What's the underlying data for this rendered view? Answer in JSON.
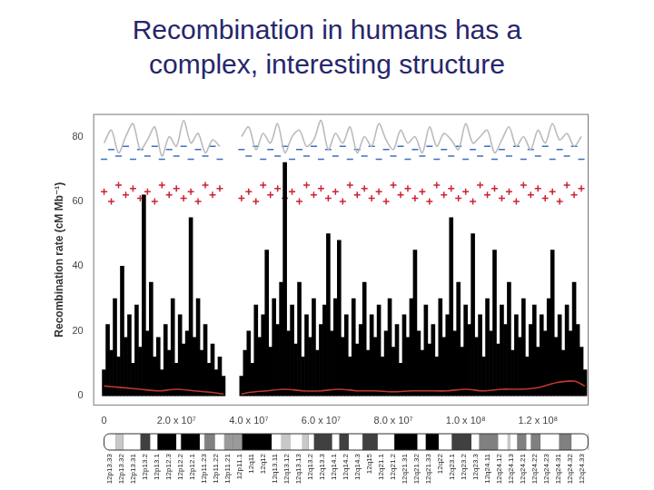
{
  "chart_data": {
    "type": "bar",
    "title": "Recombination in humans has a complex, interesting structure",
    "y_label": "Recombination rate (cM Mb⁻¹)",
    "xlim": [
      -3000000,
      134000000
    ],
    "xticks": [
      0,
      {
        "value": 20000000,
        "label": "2.0 x 10⁷"
      },
      {
        "value": 40000000,
        "label": "4.0 x 10⁷"
      },
      {
        "value": 60000000,
        "label": "6.0 x 10⁷"
      },
      {
        "value": 80000000,
        "label": "8.0 x 10⁷"
      },
      {
        "value": 100000000,
        "label": "1.0 x 10⁸"
      },
      {
        "value": 120000000,
        "label": "1.2 x 10⁸"
      }
    ],
    "ylim": [
      -3,
      87
    ],
    "yticks": [
      0,
      20,
      40,
      60,
      80
    ],
    "grid": false,
    "series": [
      {
        "type": "line",
        "color": "#c0392b",
        "x": [
          0,
          5000000,
          10000000,
          15000000,
          20000000,
          25000000,
          30000000,
          33000000,
          35000000,
          38000000,
          40000000,
          45000000,
          50000000,
          55000000,
          60000000,
          65000000,
          70000000,
          75000000,
          80000000,
          85000000,
          90000000,
          95000000,
          100000000,
          105000000,
          110000000,
          115000000,
          120000000,
          125000000,
          130000000,
          133000000
        ],
        "values": [
          3,
          2.5,
          2,
          1.5,
          2,
          1.5,
          1,
          0.5,
          null,
          0.5,
          1,
          1.5,
          2,
          1.5,
          1.5,
          2,
          1.5,
          1.5,
          1.2,
          1.5,
          1.5,
          1.5,
          2,
          1.5,
          2,
          2,
          2.5,
          4,
          4.5,
          3
        ]
      },
      {
        "type": "bar",
        "color": "#000000",
        "x": [
          0,
          1000000,
          2000000,
          3000000,
          4000000,
          5000000,
          6000000,
          7000000,
          8000000,
          9000000,
          10000000,
          11000000,
          12000000,
          13000000,
          14000000,
          15000000,
          16000000,
          17000000,
          18000000,
          19000000,
          20000000,
          21000000,
          22000000,
          23000000,
          24000000,
          25000000,
          26000000,
          27000000,
          28000000,
          29000000,
          30000000,
          31000000,
          32000000,
          33000000,
          34000000,
          35000000,
          36000000,
          37000000,
          38000000,
          39000000,
          40000000,
          41000000,
          42000000,
          43000000,
          44000000,
          45000000,
          46000000,
          47000000,
          48000000,
          49000000,
          50000000,
          51000000,
          52000000,
          53000000,
          54000000,
          55000000,
          56000000,
          57000000,
          58000000,
          59000000,
          60000000,
          61000000,
          62000000,
          63000000,
          64000000,
          65000000,
          66000000,
          67000000,
          68000000,
          69000000,
          70000000,
          71000000,
          72000000,
          73000000,
          74000000,
          75000000,
          76000000,
          77000000,
          78000000,
          79000000,
          80000000,
          81000000,
          82000000,
          83000000,
          84000000,
          85000000,
          86000000,
          87000000,
          88000000,
          89000000,
          90000000,
          91000000,
          92000000,
          93000000,
          94000000,
          95000000,
          96000000,
          97000000,
          98000000,
          99000000,
          100000000,
          101000000,
          102000000,
          103000000,
          104000000,
          105000000,
          106000000,
          107000000,
          108000000,
          109000000,
          110000000,
          111000000,
          112000000,
          113000000,
          114000000,
          115000000,
          116000000,
          117000000,
          118000000,
          119000000,
          120000000,
          121000000,
          122000000,
          123000000,
          124000000,
          125000000,
          126000000,
          127000000,
          128000000,
          129000000,
          130000000,
          131000000,
          132000000,
          133000000
        ],
        "values": [
          8,
          22,
          14,
          30,
          12,
          40,
          18,
          25,
          10,
          28,
          15,
          62,
          20,
          35,
          12,
          18,
          8,
          22,
          14,
          30,
          10,
          25,
          16,
          20,
          55,
          18,
          30,
          14,
          22,
          10,
          16,
          8,
          12,
          6,
          null,
          null,
          null,
          null,
          6,
          14,
          20,
          10,
          28,
          18,
          25,
          45,
          15,
          30,
          22,
          35,
          72,
          20,
          28,
          16,
          35,
          12,
          25,
          18,
          30,
          14,
          22,
          28,
          50,
          20,
          30,
          48,
          18,
          25,
          12,
          30,
          16,
          22,
          35,
          14,
          25,
          18,
          28,
          12,
          20,
          30,
          15,
          22,
          10,
          25,
          18,
          30,
          45,
          20,
          14,
          28,
          16,
          22,
          12,
          30,
          18,
          25,
          55,
          20,
          35,
          15,
          28,
          22,
          50,
          18,
          25,
          12,
          30,
          20,
          45,
          16,
          28,
          22,
          35,
          14,
          25,
          18,
          30,
          12,
          22,
          28,
          15,
          25,
          20,
          30,
          45,
          18,
          25,
          14,
          28,
          20,
          35,
          22,
          15,
          8
        ]
      },
      {
        "type": "line",
        "color": "#bbbbbb",
        "x": [
          0,
          2000000,
          4000000,
          6000000,
          8000000,
          10000000,
          12000000,
          14000000,
          16000000,
          18000000,
          20000000,
          22000000,
          24000000,
          26000000,
          28000000,
          30000000,
          32000000,
          34000000,
          36000000,
          38000000,
          40000000,
          42000000,
          44000000,
          46000000,
          48000000,
          50000000,
          52000000,
          54000000,
          56000000,
          58000000,
          60000000,
          62000000,
          64000000,
          66000000,
          68000000,
          70000000,
          72000000,
          74000000,
          76000000,
          78000000,
          80000000,
          82000000,
          84000000,
          86000000,
          88000000,
          90000000,
          92000000,
          94000000,
          96000000,
          98000000,
          100000000,
          102000000,
          104000000,
          106000000,
          108000000,
          110000000,
          112000000,
          114000000,
          116000000,
          118000000,
          120000000,
          122000000,
          124000000,
          126000000,
          128000000,
          130000000,
          132000000
        ],
        "values": [
          78,
          82,
          75,
          80,
          84,
          76,
          79,
          83,
          74,
          80,
          77,
          85,
          78,
          81,
          75,
          79,
          77,
          null,
          null,
          80,
          83,
          76,
          81,
          78,
          84,
          75,
          80,
          82,
          77,
          79,
          85,
          76,
          81,
          78,
          83,
          75,
          80,
          77,
          84,
          79,
          76,
          82,
          78,
          80,
          75,
          83,
          77,
          81,
          79,
          76,
          84,
          78,
          80,
          82,
          75,
          79,
          83,
          77,
          80,
          76,
          82,
          78,
          84,
          79,
          81,
          77,
          80
        ]
      },
      {
        "type": "scatter",
        "color": "#3a6fc4",
        "marker": "line",
        "x": [
          0,
          2000000,
          4000000,
          6000000,
          8000000,
          10000000,
          12000000,
          14000000,
          16000000,
          18000000,
          20000000,
          22000000,
          24000000,
          26000000,
          28000000,
          30000000,
          32000000,
          34000000,
          36000000,
          38000000,
          40000000,
          42000000,
          44000000,
          46000000,
          48000000,
          50000000,
          52000000,
          54000000,
          56000000,
          58000000,
          60000000,
          62000000,
          64000000,
          66000000,
          68000000,
          70000000,
          72000000,
          74000000,
          76000000,
          78000000,
          80000000,
          82000000,
          84000000,
          86000000,
          88000000,
          90000000,
          92000000,
          94000000,
          96000000,
          98000000,
          100000000,
          102000000,
          104000000,
          106000000,
          108000000,
          110000000,
          112000000,
          114000000,
          116000000,
          118000000,
          120000000,
          122000000,
          124000000,
          126000000,
          128000000,
          130000000,
          132000000
        ],
        "values": [
          73,
          76,
          74,
          77,
          73,
          76,
          74,
          77,
          73,
          76,
          74,
          77,
          73,
          76,
          74,
          77,
          73,
          null,
          null,
          76,
          74,
          77,
          73,
          76,
          74,
          77,
          73,
          76,
          74,
          77,
          73,
          76,
          74,
          77,
          73,
          76,
          74,
          77,
          73,
          76,
          74,
          77,
          73,
          76,
          74,
          77,
          73,
          76,
          74,
          77,
          73,
          76,
          74,
          77,
          73,
          76,
          74,
          77,
          73,
          76,
          74,
          77,
          73,
          76,
          74,
          77,
          73
        ]
      },
      {
        "type": "scatter",
        "color": "#cc2233",
        "marker": "cross",
        "x": [
          0,
          2000000,
          4000000,
          6000000,
          8000000,
          10000000,
          12000000,
          14000000,
          16000000,
          18000000,
          20000000,
          22000000,
          24000000,
          26000000,
          28000000,
          30000000,
          32000000,
          34000000,
          36000000,
          38000000,
          40000000,
          42000000,
          44000000,
          46000000,
          48000000,
          50000000,
          52000000,
          54000000,
          56000000,
          58000000,
          60000000,
          62000000,
          64000000,
          66000000,
          68000000,
          70000000,
          72000000,
          74000000,
          76000000,
          78000000,
          80000000,
          82000000,
          84000000,
          86000000,
          88000000,
          90000000,
          92000000,
          94000000,
          96000000,
          98000000,
          100000000,
          102000000,
          104000000,
          106000000,
          108000000,
          110000000,
          112000000,
          114000000,
          116000000,
          118000000,
          120000000,
          122000000,
          124000000,
          126000000,
          128000000,
          130000000,
          132000000
        ],
        "values": [
          63,
          60,
          65,
          62,
          64,
          61,
          63,
          60,
          65,
          62,
          64,
          61,
          63,
          60,
          65,
          62,
          64,
          null,
          null,
          61,
          63,
          60,
          65,
          62,
          64,
          61,
          63,
          60,
          65,
          62,
          64,
          61,
          63,
          60,
          65,
          62,
          64,
          61,
          63,
          60,
          65,
          62,
          64,
          61,
          63,
          60,
          65,
          62,
          64,
          61,
          63,
          60,
          65,
          62,
          64,
          61,
          63,
          60,
          65,
          62,
          64,
          61,
          63,
          60,
          65,
          62,
          64
        ]
      }
    ],
    "ideogram": {
      "labels": [
        "12p13.33",
        "12p13.32",
        "12p13.31",
        "12p13.2",
        "12p13.1",
        "12p12.3",
        "12p12.2",
        "12p12.1",
        "12p11.23",
        "12p11.22",
        "12p11.21",
        "12p11.1",
        "12q11",
        "12q12",
        "12q13.11",
        "12q13.12",
        "12q13.13",
        "12q13.2",
        "12q13.3",
        "12q14.1",
        "12q14.2",
        "12q14.3",
        "12q15",
        "12q21.1",
        "12q21.2",
        "12q21.31",
        "12q21.32",
        "12q21.33",
        "12q22",
        "12q23.1",
        "12q23.2",
        "12q23.3",
        "12q24.11",
        "12q24.12",
        "12q24.13",
        "12q24.21",
        "12q24.22",
        "12q24.23",
        "12q24.31",
        "12q24.32",
        "12q24.33"
      ],
      "start": [
        0,
        3300000,
        5400000,
        10100000,
        12800000,
        14800000,
        20000000,
        21300000,
        26500000,
        27800000,
        30700000,
        33300000,
        35800000,
        38200000,
        46400000,
        49100000,
        51500000,
        54900000,
        56600000,
        58100000,
        63100000,
        65100000,
        67700000,
        71500000,
        75700000,
        80300000,
        86700000,
        89000000,
        92600000,
        96200000,
        101600000,
        103800000,
        109000000,
        111700000,
        112300000,
        114300000,
        116800000,
        118100000,
        120700000,
        125900000,
        129300000
      ],
      "end": [
        3300000,
        5400000,
        10100000,
        12800000,
        14800000,
        20000000,
        21300000,
        26500000,
        27800000,
        30700000,
        33300000,
        35800000,
        38200000,
        46400000,
        49100000,
        51500000,
        54900000,
        56600000,
        58100000,
        63100000,
        65100000,
        67700000,
        71500000,
        75700000,
        80300000,
        86700000,
        89000000,
        92600000,
        96200000,
        101600000,
        103800000,
        109000000,
        111700000,
        112300000,
        114300000,
        116800000,
        118100000,
        120700000,
        125900000,
        129300000,
        133850000
      ],
      "colors": [
        "#ffffff",
        "#c8c8c8",
        "#ffffff",
        "#404040",
        "#ffffff",
        "#000000",
        "#ffffff",
        "#000000",
        "#ffffff",
        "#808080",
        "#ffffff",
        "#9a9a9a",
        "#9a9a9a",
        "#000000",
        "#ffffff",
        "#c8c8c8",
        "#ffffff",
        "#c8c8c8",
        "#ffffff",
        "#404040",
        "#ffffff",
        "#404040",
        "#ffffff",
        "#404040",
        "#ffffff",
        "#000000",
        "#ffffff",
        "#000000",
        "#ffffff",
        "#404040",
        "#ffffff",
        "#808080",
        "#ffffff",
        "#c8c8c8",
        "#ffffff",
        "#808080",
        "#ffffff",
        "#808080",
        "#ffffff",
        "#808080",
        "#ffffff"
      ]
    }
  }
}
